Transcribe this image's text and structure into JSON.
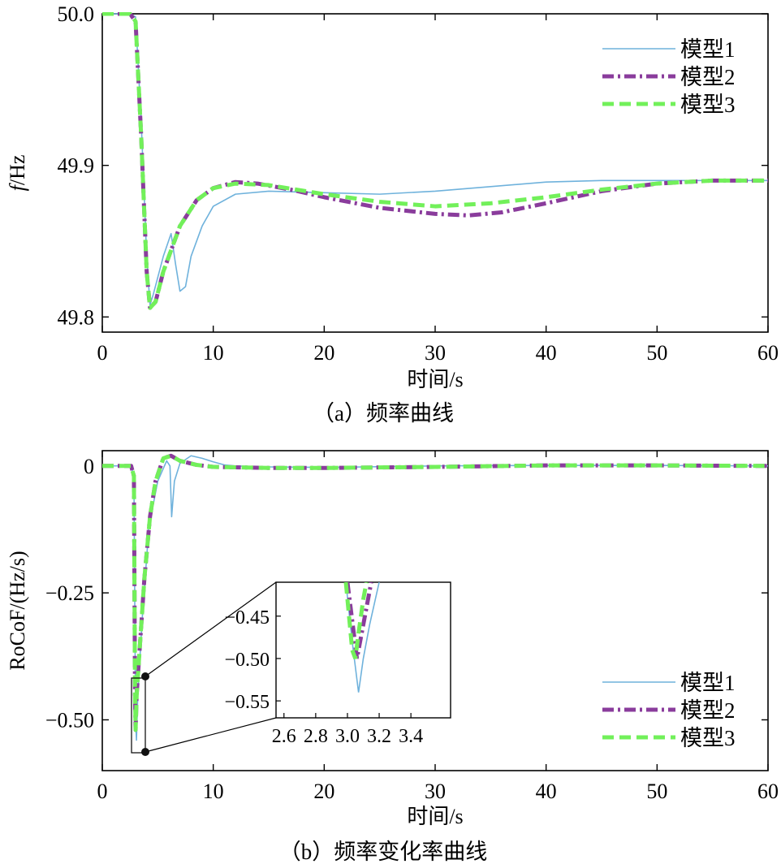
{
  "series_styles": {
    "m1": {
      "label": "模型1",
      "color": "#6fb2dc",
      "dash": "solid"
    },
    "m2": {
      "label": "模型2",
      "color": "#8a3c9c",
      "dash": "dashdot"
    },
    "m3": {
      "label": "模型3",
      "color": "#72f05a",
      "dash": "dashed"
    }
  },
  "chart_data": [
    {
      "id": "a",
      "type": "line",
      "caption": "（a）频率曲线",
      "xlabel": "时间/s",
      "ylabel": "f/Hz",
      "ylabel_italic": "f",
      "ylabel_rest": "/Hz",
      "xlim": [
        0,
        60
      ],
      "ylim": [
        49.79,
        50.0
      ],
      "xticks": [
        0,
        10,
        20,
        30,
        40,
        50,
        60
      ],
      "yticks": [
        {
          "value": 49.8,
          "label": "49.8"
        },
        {
          "value": 49.9,
          "label": "49.9"
        },
        {
          "value": 50.0,
          "label": "50.0"
        }
      ],
      "legend_position": "top-right",
      "series": [
        {
          "key": "m1",
          "name": "模型1",
          "points": [
            [
              0,
              50
            ],
            [
              2.5,
              50
            ],
            [
              3,
              49.998
            ],
            [
              3.5,
              49.93
            ],
            [
              4,
              49.84
            ],
            [
              4.3,
              49.808
            ],
            [
              4.6,
              49.815
            ],
            [
              5.5,
              49.84
            ],
            [
              6.2,
              49.855
            ],
            [
              6.6,
              49.835
            ],
            [
              7,
              49.817
            ],
            [
              7.5,
              49.82
            ],
            [
              8,
              49.84
            ],
            [
              9,
              49.86
            ],
            [
              10,
              49.873
            ],
            [
              12,
              49.881
            ],
            [
              15,
              49.883
            ],
            [
              20,
              49.882
            ],
            [
              25,
              49.881
            ],
            [
              30,
              49.883
            ],
            [
              35,
              49.886
            ],
            [
              40,
              49.889
            ],
            [
              45,
              49.89
            ],
            [
              50,
              49.89
            ],
            [
              55,
              49.89
            ],
            [
              60,
              49.89
            ]
          ]
        },
        {
          "key": "m2",
          "name": "模型2",
          "points": [
            [
              0,
              50
            ],
            [
              2.5,
              50
            ],
            [
              3,
              49.995
            ],
            [
              3.5,
              49.92
            ],
            [
              4,
              49.83
            ],
            [
              4.3,
              49.806
            ],
            [
              4.8,
              49.81
            ],
            [
              5.5,
              49.83
            ],
            [
              7,
              49.86
            ],
            [
              8.5,
              49.877
            ],
            [
              10,
              49.885
            ],
            [
              12,
              49.889
            ],
            [
              14,
              49.888
            ],
            [
              17,
              49.884
            ],
            [
              20,
              49.879
            ],
            [
              25,
              49.872
            ],
            [
              30,
              49.868
            ],
            [
              33,
              49.867
            ],
            [
              36,
              49.869
            ],
            [
              40,
              49.875
            ],
            [
              45,
              49.883
            ],
            [
              50,
              49.888
            ],
            [
              55,
              49.89
            ],
            [
              60,
              49.89
            ]
          ]
        },
        {
          "key": "m3",
          "name": "模型3",
          "points": [
            [
              0,
              50
            ],
            [
              2.5,
              50
            ],
            [
              3,
              49.995
            ],
            [
              3.5,
              49.92
            ],
            [
              4,
              49.83
            ],
            [
              4.3,
              49.806
            ],
            [
              4.8,
              49.81
            ],
            [
              5.5,
              49.83
            ],
            [
              7,
              49.86
            ],
            [
              8.5,
              49.877
            ],
            [
              10,
              49.885
            ],
            [
              12,
              49.888
            ],
            [
              15,
              49.887
            ],
            [
              20,
              49.881
            ],
            [
              25,
              49.876
            ],
            [
              30,
              49.873
            ],
            [
              35,
              49.875
            ],
            [
              40,
              49.879
            ],
            [
              45,
              49.884
            ],
            [
              50,
              49.888
            ],
            [
              55,
              49.89
            ],
            [
              60,
              49.89
            ]
          ]
        }
      ]
    },
    {
      "id": "b",
      "type": "line",
      "caption": "（b）频率变化率曲线",
      "xlabel": "时间/s",
      "ylabel": "RoCoF/(Hz/s)",
      "xlim": [
        0,
        60
      ],
      "ylim": [
        -0.6,
        0.03
      ],
      "xticks": [
        0,
        10,
        20,
        30,
        40,
        50,
        60
      ],
      "yticks": [
        {
          "value": 0,
          "label": "0"
        },
        {
          "value": -0.25,
          "label": "−0.25"
        },
        {
          "value": -0.5,
          "label": "−0.50"
        }
      ],
      "legend_position": "bottom-right",
      "series": [
        {
          "key": "m1",
          "name": "模型1",
          "points": [
            [
              0,
              0
            ],
            [
              2.6,
              0
            ],
            [
              2.85,
              -0.02
            ],
            [
              3.0,
              -0.5
            ],
            [
              3.08,
              -0.54
            ],
            [
              3.2,
              -0.45
            ],
            [
              3.6,
              -0.3
            ],
            [
              4.2,
              -0.12
            ],
            [
              5,
              -0.03
            ],
            [
              5.8,
              0.01
            ],
            [
              6.1,
              0.0
            ],
            [
              6.25,
              -0.1
            ],
            [
              6.5,
              -0.03
            ],
            [
              7,
              0.005
            ],
            [
              8,
              0.02
            ],
            [
              9,
              0.015
            ],
            [
              10,
              0.008
            ],
            [
              11,
              0.002
            ],
            [
              12,
              0
            ],
            [
              15,
              -0.002
            ],
            [
              20,
              -0.003
            ],
            [
              30,
              0
            ],
            [
              40,
              0.001
            ],
            [
              50,
              0.001
            ],
            [
              60,
              0
            ]
          ]
        },
        {
          "key": "m2",
          "name": "模型2",
          "points": [
            [
              0,
              0
            ],
            [
              2.6,
              0
            ],
            [
              2.85,
              -0.02
            ],
            [
              2.95,
              -0.45
            ],
            [
              3.0,
              -0.52
            ],
            [
              3.1,
              -0.45
            ],
            [
              3.4,
              -0.35
            ],
            [
              3.8,
              -0.22
            ],
            [
              4.3,
              -0.1
            ],
            [
              4.8,
              -0.03
            ],
            [
              5.5,
              0.015
            ],
            [
              6.2,
              0.02
            ],
            [
              7,
              0.01
            ],
            [
              8.5,
              0.002
            ],
            [
              10,
              -0.002
            ],
            [
              15,
              -0.004
            ],
            [
              20,
              -0.004
            ],
            [
              30,
              -0.002
            ],
            [
              40,
              0.001
            ],
            [
              50,
              0.001
            ],
            [
              60,
              0
            ]
          ]
        },
        {
          "key": "m3",
          "name": "模型3",
          "points": [
            [
              0,
              0
            ],
            [
              2.6,
              0
            ],
            [
              2.85,
              -0.02
            ],
            [
              2.95,
              -0.45
            ],
            [
              3.0,
              -0.52
            ],
            [
              3.1,
              -0.45
            ],
            [
              3.4,
              -0.35
            ],
            [
              3.8,
              -0.22
            ],
            [
              4.3,
              -0.1
            ],
            [
              4.8,
              -0.03
            ],
            [
              5.5,
              0.015
            ],
            [
              6.2,
              0.02
            ],
            [
              7,
              0.01
            ],
            [
              8.5,
              0.002
            ],
            [
              10,
              -0.002
            ],
            [
              15,
              -0.004
            ],
            [
              20,
              -0.004
            ],
            [
              30,
              -0.002
            ],
            [
              40,
              0.001
            ],
            [
              50,
              0.001
            ],
            [
              60,
              0
            ]
          ]
        }
      ],
      "inset": {
        "xlim": [
          2.55,
          3.65
        ],
        "ylim": [
          -0.57,
          -0.41
        ],
        "xticks": [
          {
            "value": 2.6,
            "label": "2.6"
          },
          {
            "value": 2.8,
            "label": "2.8"
          },
          {
            "value": 3.0,
            "label": "3.0"
          },
          {
            "value": 3.2,
            "label": "3.2"
          },
          {
            "value": 3.4,
            "label": "3.4"
          }
        ],
        "yticks": [
          {
            "value": -0.45,
            "label": "−0.45"
          },
          {
            "value": -0.5,
            "label": "−0.50"
          },
          {
            "value": -0.55,
            "label": "−0.55"
          }
        ],
        "zoom_region": {
          "x": [
            2.6,
            3.7
          ],
          "y": [
            -0.56,
            -0.41
          ]
        },
        "series": [
          {
            "key": "m1",
            "points": [
              [
                2.99,
                -0.41
              ],
              [
                3.03,
                -0.48
              ],
              [
                3.07,
                -0.54
              ],
              [
                3.1,
                -0.5
              ],
              [
                3.14,
                -0.46
              ],
              [
                3.2,
                -0.41
              ]
            ]
          },
          {
            "key": "m2",
            "points": [
              [
                3.0,
                -0.41
              ],
              [
                3.02,
                -0.44
              ],
              [
                3.04,
                -0.47
              ],
              [
                3.06,
                -0.5
              ],
              [
                3.09,
                -0.47
              ],
              [
                3.13,
                -0.43
              ],
              [
                3.15,
                -0.41
              ]
            ]
          },
          {
            "key": "m3",
            "points": [
              [
                2.99,
                -0.41
              ],
              [
                3.01,
                -0.45
              ],
              [
                3.03,
                -0.49
              ],
              [
                3.05,
                -0.5
              ],
              [
                3.07,
                -0.47
              ],
              [
                3.1,
                -0.43
              ],
              [
                3.12,
                -0.41
              ]
            ]
          }
        ]
      }
    }
  ]
}
